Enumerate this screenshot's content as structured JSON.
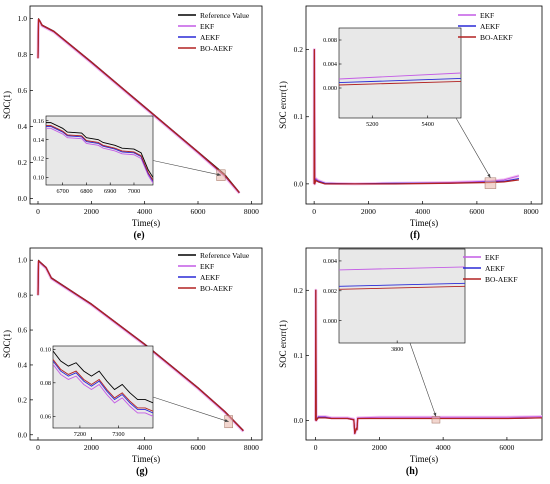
{
  "colors": {
    "reference": "#000000",
    "ekf": "#c45ce6",
    "aekf": "#2a2ad6",
    "bo_aekf": "#b22222",
    "ekf_band": "#f3c2f0",
    "inset_bg": "#e8e8e8",
    "highlight_box": "#e8b4a8"
  },
  "legend_labels": [
    "Reference Value",
    "EKF",
    "AEKF",
    "BO-AEKF"
  ],
  "chart_data": [
    {
      "panel": "(e)",
      "type": "line",
      "xlabel": "Time(s)",
      "ylabel": "SOC(1)",
      "xlim": [
        -300,
        8400
      ],
      "ylim": [
        -0.03,
        1.07
      ],
      "xticks": [
        0,
        2000,
        4000,
        6000,
        8000
      ],
      "yticks": [
        0.0,
        0.2,
        0.4,
        0.6,
        0.8,
        1.0
      ],
      "grid": false,
      "legend_position": "top-right",
      "series": [
        {
          "name": "Reference Value",
          "x": [
            0,
            20,
            60,
            150,
            600,
            2000,
            4000,
            6000,
            7000,
            7550
          ],
          "y": [
            0.78,
            1.0,
            0.99,
            0.965,
            0.93,
            0.76,
            0.51,
            0.26,
            0.135,
            0.035
          ]
        },
        {
          "name": "EKF",
          "x": [
            0,
            20,
            60,
            150,
            600,
            2000,
            4000,
            6000,
            7000,
            7550
          ],
          "y": [
            0.78,
            0.99,
            0.985,
            0.96,
            0.925,
            0.755,
            0.505,
            0.255,
            0.125,
            0.03
          ]
        },
        {
          "name": "AEKF",
          "x": [
            0,
            20,
            60,
            150,
            600,
            2000,
            4000,
            6000,
            7000,
            7550
          ],
          "y": [
            0.78,
            0.995,
            0.987,
            0.962,
            0.927,
            0.757,
            0.507,
            0.257,
            0.128,
            0.032
          ]
        },
        {
          "name": "BO-AEKF",
          "x": [
            0,
            20,
            60,
            150,
            600,
            2000,
            4000,
            6000,
            7000,
            7550
          ],
          "y": [
            0.78,
            0.997,
            0.988,
            0.963,
            0.928,
            0.758,
            0.508,
            0.258,
            0.13,
            0.033
          ]
        }
      ],
      "inset": {
        "xlim": [
          6630,
          7080
        ],
        "ylim": [
          0.092,
          0.165
        ],
        "xticks": [
          6700,
          6800,
          6900,
          7000
        ],
        "yticks": [
          0.1,
          0.12,
          0.14,
          0.16
        ],
        "series": [
          {
            "name": "Reference Value",
            "x": [
              6630,
              6650,
              6700,
              6720,
              6780,
              6800,
              6850,
              6870,
              6920,
              6950,
              7000,
              7030,
              7060,
              7080
            ],
            "y": [
              0.158,
              0.158,
              0.152,
              0.148,
              0.147,
              0.142,
              0.14,
              0.137,
              0.134,
              0.131,
              0.13,
              0.126,
              0.108,
              0.1
            ]
          },
          {
            "name": "EKF",
            "x": [
              6630,
              6650,
              6700,
              6720,
              6780,
              6800,
              6850,
              6870,
              6920,
              6950,
              7000,
              7030,
              7060,
              7080
            ],
            "y": [
              0.152,
              0.152,
              0.146,
              0.142,
              0.141,
              0.136,
              0.134,
              0.131,
              0.128,
              0.125,
              0.124,
              0.12,
              0.102,
              0.094
            ]
          },
          {
            "name": "AEKF",
            "x": [
              6630,
              6650,
              6700,
              6720,
              6780,
              6800,
              6850,
              6870,
              6920,
              6950,
              7000,
              7030,
              7060,
              7080
            ],
            "y": [
              0.154,
              0.154,
              0.148,
              0.144,
              0.143,
              0.138,
              0.136,
              0.133,
              0.13,
              0.127,
              0.126,
              0.122,
              0.104,
              0.096
            ]
          },
          {
            "name": "BO-AEKF",
            "x": [
              6630,
              6650,
              6700,
              6720,
              6780,
              6800,
              6850,
              6870,
              6920,
              6950,
              7000,
              7030,
              7060,
              7080
            ],
            "y": [
              0.155,
              0.155,
              0.149,
              0.145,
              0.144,
              0.139,
              0.137,
              0.134,
              0.131,
              0.128,
              0.127,
              0.123,
              0.105,
              0.097
            ]
          }
        ]
      }
    },
    {
      "panel": "(f)",
      "type": "line",
      "xlabel": "Time(s)",
      "ylabel": "SOC erorr(1)",
      "xlim": [
        -300,
        8400
      ],
      "ylim": [
        -0.03,
        0.265
      ],
      "xticks": [
        0,
        2000,
        4000,
        6000,
        8000
      ],
      "yticks": [
        0.0,
        0.1,
        0.2
      ],
      "grid": false,
      "legend_position": "top-right",
      "series": [
        {
          "name": "EKF",
          "x": [
            0,
            8,
            20,
            60,
            150,
            400,
            1500,
            3000,
            5000,
            6500,
            7000,
            7550
          ],
          "y": [
            0.0,
            0.2,
            0.0,
            0.008,
            0.005,
            0.001,
            0.0,
            0.001,
            0.002,
            0.004,
            0.006,
            0.012
          ]
        },
        {
          "name": "AEKF",
          "x": [
            0,
            8,
            20,
            60,
            150,
            400,
            1500,
            3000,
            5000,
            6500,
            7000,
            7550
          ],
          "y": [
            0.0,
            0.2,
            0.0,
            0.006,
            0.004,
            0.001,
            0.0,
            0.001,
            0.001,
            0.003,
            0.004,
            0.008
          ]
        },
        {
          "name": "BO-AEKF",
          "x": [
            0,
            8,
            20,
            60,
            150,
            400,
            1500,
            3000,
            5000,
            6500,
            7000,
            7550
          ],
          "y": [
            0.0,
            0.2,
            0.0,
            0.005,
            0.003,
            0.0,
            0.0,
            0.0,
            0.001,
            0.002,
            0.003,
            0.006
          ]
        }
      ],
      "inset": {
        "xlim": [
          5080,
          5520
        ],
        "ylim": [
          -0.005,
          0.01
        ],
        "xticks": [
          5200,
          5400
        ],
        "yticks": [
          0.0,
          0.004,
          0.008
        ],
        "series": [
          {
            "name": "EKF",
            "x": [
              5080,
              5520
            ],
            "y": [
              0.0015,
              0.0025
            ]
          },
          {
            "name": "AEKF",
            "x": [
              5080,
              5520
            ],
            "y": [
              0.0009,
              0.0016
            ]
          },
          {
            "name": "BO-AEKF",
            "x": [
              5080,
              5520
            ],
            "y": [
              0.0005,
              0.0011
            ]
          }
        ]
      }
    },
    {
      "panel": "(g)",
      "type": "line",
      "xlabel": "Time(s)",
      "ylabel": "SOC(1)",
      "xlim": [
        -300,
        8400
      ],
      "ylim": [
        -0.03,
        1.07
      ],
      "xticks": [
        0,
        2000,
        4000,
        6000,
        8000
      ],
      "yticks": [
        0.0,
        0.2,
        0.4,
        0.6,
        0.8,
        1.0
      ],
      "grid": false,
      "legend_position": "top-right",
      "series": [
        {
          "name": "Reference Value",
          "x": [
            0,
            20,
            80,
            300,
            500,
            1000,
            1500,
            2000,
            4000,
            6000,
            7000,
            7700
          ],
          "y": [
            0.8,
            1.0,
            0.99,
            0.96,
            0.9,
            0.85,
            0.8,
            0.75,
            0.52,
            0.27,
            0.135,
            0.025
          ]
        },
        {
          "name": "EKF",
          "x": [
            0,
            20,
            80,
            300,
            500,
            1000,
            1500,
            2000,
            4000,
            6000,
            7000,
            7700
          ],
          "y": [
            0.8,
            0.99,
            0.985,
            0.955,
            0.895,
            0.845,
            0.795,
            0.745,
            0.515,
            0.265,
            0.13,
            0.02
          ]
        },
        {
          "name": "AEKF",
          "x": [
            0,
            20,
            80,
            300,
            500,
            1000,
            1500,
            2000,
            4000,
            6000,
            7000,
            7700
          ],
          "y": [
            0.8,
            0.995,
            0.987,
            0.957,
            0.897,
            0.847,
            0.797,
            0.747,
            0.517,
            0.267,
            0.132,
            0.022
          ]
        },
        {
          "name": "BO-AEKF",
          "x": [
            0,
            20,
            80,
            300,
            500,
            1000,
            1500,
            2000,
            4000,
            6000,
            7000,
            7700
          ],
          "y": [
            0.8,
            0.997,
            0.988,
            0.958,
            0.898,
            0.848,
            0.798,
            0.748,
            0.518,
            0.268,
            0.133,
            0.023
          ]
        }
      ],
      "inset": {
        "xlim": [
          7130,
          7390
        ],
        "ylim": [
          0.053,
          0.102
        ],
        "xticks": [
          7200,
          7300
        ],
        "yticks": [
          0.06,
          0.08,
          0.1
        ],
        "series": [
          {
            "name": "Reference Value",
            "x": [
              7130,
              7150,
              7170,
              7190,
              7210,
              7230,
              7250,
              7270,
              7290,
              7310,
              7330,
              7350,
              7370,
              7390
            ],
            "y": [
              0.099,
              0.093,
              0.09,
              0.092,
              0.087,
              0.084,
              0.087,
              0.081,
              0.076,
              0.079,
              0.074,
              0.07,
              0.07,
              0.068
            ]
          },
          {
            "name": "EKF",
            "x": [
              7130,
              7150,
              7170,
              7190,
              7210,
              7230,
              7250,
              7270,
              7290,
              7310,
              7330,
              7350,
              7370,
              7390
            ],
            "y": [
              0.091,
              0.085,
              0.082,
              0.084,
              0.079,
              0.076,
              0.079,
              0.073,
              0.068,
              0.071,
              0.066,
              0.062,
              0.062,
              0.06
            ]
          },
          {
            "name": "AEKF",
            "x": [
              7130,
              7150,
              7170,
              7190,
              7210,
              7230,
              7250,
              7270,
              7290,
              7310,
              7330,
              7350,
              7370,
              7390
            ],
            "y": [
              0.093,
              0.087,
              0.084,
              0.086,
              0.081,
              0.078,
              0.081,
              0.075,
              0.07,
              0.073,
              0.068,
              0.064,
              0.064,
              0.062
            ]
          },
          {
            "name": "BO-AEKF",
            "x": [
              7130,
              7150,
              7170,
              7190,
              7210,
              7230,
              7250,
              7270,
              7290,
              7310,
              7330,
              7350,
              7370,
              7390
            ],
            "y": [
              0.094,
              0.088,
              0.085,
              0.087,
              0.082,
              0.079,
              0.082,
              0.076,
              0.071,
              0.074,
              0.069,
              0.065,
              0.065,
              0.063
            ]
          }
        ]
      }
    },
    {
      "panel": "(h)",
      "type": "line",
      "xlabel": "Time(s)",
      "ylabel": "SOC erorr(1)",
      "xlim": [
        -300,
        7100
      ],
      "ylim": [
        -0.03,
        0.265
      ],
      "xticks": [
        0,
        2000,
        4000,
        6000
      ],
      "yticks": [
        0.0,
        0.1,
        0.2
      ],
      "grid": false,
      "legend_position": "top-right",
      "series": [
        {
          "name": "EKF",
          "x": [
            0,
            8,
            20,
            80,
            300,
            500,
            1000,
            1200,
            1230,
            1280,
            1300,
            1320,
            2000,
            4000,
            6000,
            7100
          ],
          "y": [
            0.0,
            0.2,
            0.0,
            0.006,
            0.006,
            0.004,
            0.004,
            0.002,
            -0.02,
            -0.012,
            -0.014,
            0.004,
            0.005,
            0.005,
            0.005,
            0.006
          ]
        },
        {
          "name": "AEKF",
          "x": [
            0,
            8,
            20,
            80,
            300,
            500,
            1000,
            1200,
            1230,
            1280,
            1300,
            1320,
            2000,
            4000,
            6000,
            7100
          ],
          "y": [
            0.0,
            0.2,
            0.0,
            0.005,
            0.005,
            0.003,
            0.003,
            0.001,
            -0.02,
            -0.012,
            -0.014,
            0.003,
            0.003,
            0.003,
            0.003,
            0.004
          ]
        },
        {
          "name": "BO-AEKF",
          "x": [
            0,
            8,
            20,
            80,
            300,
            500,
            1000,
            1200,
            1230,
            1280,
            1300,
            1320,
            2000,
            4000,
            6000,
            7100
          ],
          "y": [
            0.0,
            0.2,
            0.0,
            0.004,
            0.004,
            0.003,
            0.003,
            0.001,
            -0.02,
            -0.012,
            -0.014,
            0.003,
            0.003,
            0.003,
            0.003,
            0.004
          ]
        }
      ],
      "inset": {
        "xlim": [
          3500,
          4150
        ],
        "ylim": [
          -0.0015,
          0.0048
        ],
        "xticks": [
          3800
        ],
        "yticks": [
          0.0,
          0.002,
          0.004
        ],
        "series": [
          {
            "name": "EKF",
            "x": [
              3500,
              4150
            ],
            "y": [
              0.0034,
              0.0036
            ]
          },
          {
            "name": "AEKF",
            "x": [
              3500,
              4150
            ],
            "y": [
              0.0023,
              0.0025
            ]
          },
          {
            "name": "BO-AEKF",
            "x": [
              3500,
              4150
            ],
            "y": [
              0.0021,
              0.0023
            ]
          }
        ]
      }
    }
  ]
}
